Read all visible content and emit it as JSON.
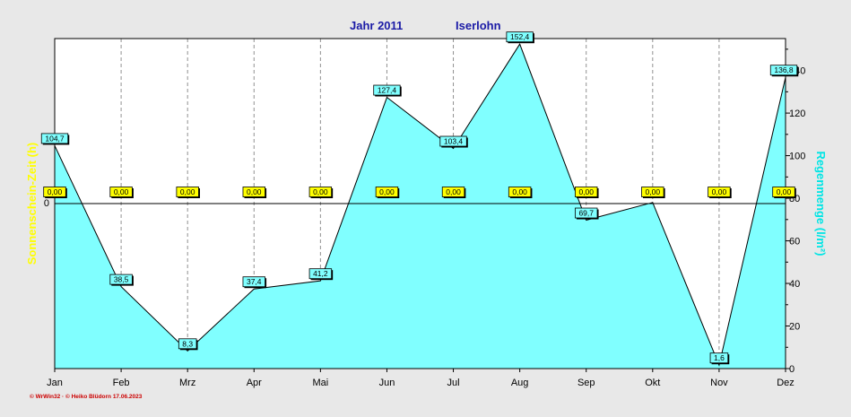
{
  "chart_data": {
    "type": "area",
    "title_year": "Jahr  2011",
    "title_location": "Iserlohn",
    "categories": [
      "Jan",
      "Feb",
      "Mrz",
      "Apr",
      "Mai",
      "Jun",
      "Jul",
      "Aug",
      "Sep",
      "Okt",
      "Nov",
      "Dez"
    ],
    "series": [
      {
        "name": "Regenmenge",
        "values": [
          104.7,
          38.5,
          8.3,
          37.4,
          41.2,
          127.4,
          103.4,
          152.4,
          69.7,
          78.0,
          1.6,
          136.8
        ],
        "labels": [
          "104,7",
          "38,5",
          "8,3",
          "37,4",
          "41,2",
          "127,4",
          "103,4",
          "152,4",
          "69,7",
          "",
          "1,6",
          "136,8"
        ],
        "color": "#80ffff"
      },
      {
        "name": "Sonnenschein-Zeit",
        "values": [
          0,
          0,
          0,
          0,
          0,
          0,
          0,
          0,
          0,
          0,
          0,
          0
        ],
        "labels": [
          "0,00",
          "0,00",
          "0,00",
          "0,00",
          "0,00",
          "0,00",
          "0,00",
          "0,00",
          "0,00",
          "0,00",
          "0,00",
          "0,00"
        ],
        "color": "#ffff00"
      }
    ],
    "ylabel_left": "Sonnenschein-Zeit  (h)",
    "ylabel_right": "Regenmenge  (l/m²)",
    "left_ticks": [
      "0"
    ],
    "right_ticks": [
      "0",
      "20",
      "40",
      "60",
      "80",
      "100",
      "120",
      "140"
    ],
    "ylim_right": [
      0,
      155
    ],
    "grid": "vertical dashed",
    "credit": "© WrWin32 · © Heiko Blüdorn  17.06.2023",
    "colors": {
      "background": "#e8e8e8",
      "plot_background": "#ffffff",
      "area_fill": "#80ffff",
      "sun_label": "#ffff00",
      "title": "#1a1aa6",
      "left_axis_label": "#ffff00",
      "right_axis_label": "#00e5e5",
      "credit": "#cc0000"
    }
  }
}
